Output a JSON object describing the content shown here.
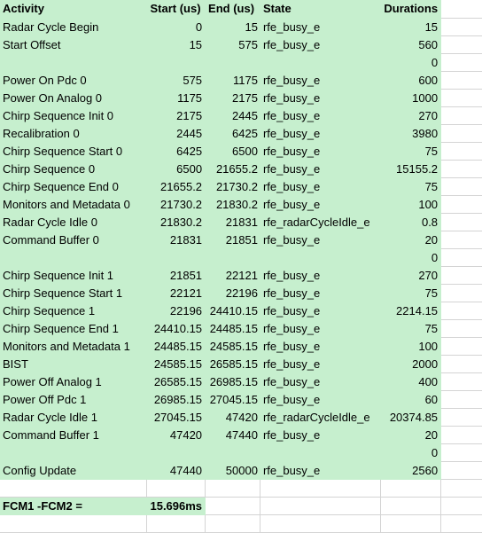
{
  "header": {
    "activity": "Activity",
    "start": "Start (us)",
    "end": "End (us)",
    "state": "State",
    "durations": "Durations"
  },
  "rows": [
    {
      "activity": "Radar Cycle Begin",
      "start": "0",
      "end": "15",
      "state": "rfe_busy_e",
      "duration": "15"
    },
    {
      "activity": "Start Offset",
      "start": "15",
      "end": "575",
      "state": "rfe_busy_e",
      "duration": "560"
    },
    {
      "activity": "",
      "start": "",
      "end": "",
      "state": "",
      "duration": "0"
    },
    {
      "activity": "Power On Pdc 0",
      "start": "575",
      "end": "1175",
      "state": "rfe_busy_e",
      "duration": "600"
    },
    {
      "activity": "Power On Analog 0",
      "start": "1175",
      "end": "2175",
      "state": "rfe_busy_e",
      "duration": "1000"
    },
    {
      "activity": "Chirp Sequence Init 0",
      "start": "2175",
      "end": "2445",
      "state": "rfe_busy_e",
      "duration": "270"
    },
    {
      "activity": "Recalibration 0",
      "start": "2445",
      "end": "6425",
      "state": "rfe_busy_e",
      "duration": "3980"
    },
    {
      "activity": "Chirp Sequence Start 0",
      "start": "6425",
      "end": "6500",
      "state": "rfe_busy_e",
      "duration": "75"
    },
    {
      "activity": "Chirp Sequence 0",
      "start": "6500",
      "end": "21655.2",
      "state": "rfe_busy_e",
      "duration": "15155.2"
    },
    {
      "activity": "Chirp Sequence End 0",
      "start": "21655.2",
      "end": "21730.2",
      "state": "rfe_busy_e",
      "duration": "75"
    },
    {
      "activity": "Monitors and Metadata 0",
      "start": "21730.2",
      "end": "21830.2",
      "state": "rfe_busy_e",
      "duration": "100"
    },
    {
      "activity": "Radar Cycle Idle 0",
      "start": "21830.2",
      "end": "21831",
      "state": "rfe_radarCycleIdle_e",
      "duration": "0.8"
    },
    {
      "activity": "Command Buffer 0",
      "start": "21831",
      "end": "21851",
      "state": "rfe_busy_e",
      "duration": "20"
    },
    {
      "activity": "",
      "start": "",
      "end": "",
      "state": "",
      "duration": "0"
    },
    {
      "activity": "Chirp Sequence Init 1",
      "start": "21851",
      "end": "22121",
      "state": "rfe_busy_e",
      "duration": "270"
    },
    {
      "activity": "Chirp Sequence Start 1",
      "start": "22121",
      "end": "22196",
      "state": "rfe_busy_e",
      "duration": "75"
    },
    {
      "activity": "Chirp Sequence 1",
      "start": "22196",
      "end": "24410.15",
      "state": "rfe_busy_e",
      "duration": "2214.15"
    },
    {
      "activity": "Chirp Sequence End 1",
      "start": "24410.15",
      "end": "24485.15",
      "state": "rfe_busy_e",
      "duration": "75"
    },
    {
      "activity": "Monitors and Metadata 1",
      "start": "24485.15",
      "end": "24585.15",
      "state": "rfe_busy_e",
      "duration": "100"
    },
    {
      "activity": "BIST",
      "start": "24585.15",
      "end": "26585.15",
      "state": "rfe_busy_e",
      "duration": "2000"
    },
    {
      "activity": "Power Off Analog 1",
      "start": "26585.15",
      "end": "26985.15",
      "state": "rfe_busy_e",
      "duration": "400"
    },
    {
      "activity": "Power Off Pdc 1",
      "start": "26985.15",
      "end": "27045.15",
      "state": "rfe_busy_e",
      "duration": "60"
    },
    {
      "activity": "Radar Cycle Idle 1",
      "start": "27045.15",
      "end": "47420",
      "state": "rfe_radarCycleIdle_e",
      "duration": "20374.85"
    },
    {
      "activity": "Command Buffer 1",
      "start": "47420",
      "end": "47440",
      "state": "rfe_busy_e",
      "duration": "20"
    },
    {
      "activity": "",
      "start": "",
      "end": "",
      "state": "",
      "duration": "0"
    },
    {
      "activity": "Config Update",
      "start": "47440",
      "end": "50000",
      "state": "rfe_busy_e",
      "duration": "2560"
    }
  ],
  "summary": {
    "label": "FCM1 -FCM2 =",
    "value": "15.696ms"
  },
  "colors": {
    "row_fill": "#c6efce",
    "gridline": "#d4d4d4"
  }
}
